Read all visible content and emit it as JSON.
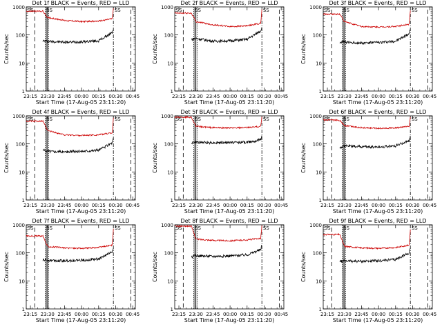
{
  "figure": {
    "xlabel": "Start Time (17-Aug-05 23:11:20)",
    "ylabel": "Counts/sec",
    "x_ticks": [
      "23:15",
      "23:30",
      "23:45",
      "00:00",
      "00:15",
      "00:30",
      "00:45"
    ],
    "y_ticks": [
      "1",
      "10",
      "100",
      "1000"
    ],
    "markers": [
      "SS",
      "SS",
      "SS"
    ],
    "colors": {
      "events": "#000000",
      "lld": "#cc0000"
    }
  },
  "chart_data": [
    {
      "type": "line",
      "title": "Det 1f BLACK = Events, RED = LLD",
      "y_scale": "log",
      "ylim": [
        1,
        1000
      ],
      "x": [
        "23:26",
        "23:30",
        "23:45",
        "00:00",
        "00:15",
        "00:27",
        "00:28"
      ],
      "series": [
        {
          "name": "Events",
          "values": [
            62,
            60,
            55,
            57,
            62,
            120,
            170
          ]
        },
        {
          "name": "LLD",
          "values": [
            700,
            420,
            330,
            300,
            310,
            380,
            900
          ]
        }
      ]
    },
    {
      "type": "line",
      "title": "Det 2f BLACK = Events, RED = LLD",
      "y_scale": "log",
      "ylim": [
        1,
        1000
      ],
      "x": [
        "23:26",
        "23:30",
        "23:45",
        "00:00",
        "00:15",
        "00:27",
        "00:28"
      ],
      "series": [
        {
          "name": "Events",
          "values": [
            70,
            75,
            60,
            62,
            70,
            140,
            200
          ]
        },
        {
          "name": "LLD",
          "values": [
            600,
            300,
            230,
            200,
            210,
            260,
            850
          ]
        }
      ]
    },
    {
      "type": "line",
      "title": "Det 3f BLACK = Events, RED = LLD",
      "y_scale": "log",
      "ylim": [
        1,
        1000
      ],
      "x": [
        "23:26",
        "23:30",
        "23:45",
        "00:00",
        "00:15",
        "00:27",
        "00:28"
      ],
      "series": [
        {
          "name": "Events",
          "values": [
            55,
            55,
            52,
            54,
            60,
            110,
            160
          ]
        },
        {
          "name": "LLD",
          "values": [
            550,
            300,
            200,
            190,
            200,
            240,
            800
          ]
        }
      ]
    },
    {
      "type": "line",
      "title": "Det 4f BLACK = Events, RED = LLD",
      "y_scale": "log",
      "ylim": [
        1,
        1000
      ],
      "x": [
        "23:26",
        "23:30",
        "23:45",
        "00:00",
        "00:15",
        "00:27",
        "00:28"
      ],
      "series": [
        {
          "name": "Events",
          "values": [
            60,
            55,
            52,
            55,
            60,
            110,
            160
          ]
        },
        {
          "name": "LLD",
          "values": [
            650,
            300,
            210,
            200,
            210,
            250,
            850
          ]
        }
      ]
    },
    {
      "type": "line",
      "title": "Det 5f BLACK = Events, RED = LLD",
      "y_scale": "log",
      "ylim": [
        1,
        1000
      ],
      "x": [
        "23:26",
        "23:30",
        "23:45",
        "00:00",
        "00:15",
        "00:27",
        "00:28"
      ],
      "series": [
        {
          "name": "Events",
          "values": [
            110,
            115,
            110,
            112,
            115,
            140,
            190
          ]
        },
        {
          "name": "LLD",
          "values": [
            900,
            420,
            380,
            370,
            380,
            420,
            950
          ]
        }
      ]
    },
    {
      "type": "line",
      "title": "Det 6f BLACK = Events, RED = LLD",
      "y_scale": "log",
      "ylim": [
        1,
        1000
      ],
      "x": [
        "23:26",
        "23:30",
        "23:45",
        "00:00",
        "00:15",
        "00:27",
        "00:28"
      ],
      "series": [
        {
          "name": "Events",
          "values": [
            75,
            85,
            80,
            78,
            85,
            130,
            180
          ]
        },
        {
          "name": "LLD",
          "values": [
            700,
            450,
            380,
            360,
            370,
            420,
            950
          ]
        }
      ]
    },
    {
      "type": "line",
      "title": "Det 7f BLACK = Events, RED = LLD",
      "y_scale": "log",
      "ylim": [
        1,
        1000
      ],
      "x": [
        "23:26",
        "23:30",
        "23:45",
        "00:00",
        "00:15",
        "00:27",
        "00:28"
      ],
      "series": [
        {
          "name": "Events",
          "values": [
            55,
            55,
            52,
            55,
            60,
            110,
            160
          ]
        },
        {
          "name": "LLD",
          "values": [
            400,
            170,
            150,
            145,
            155,
            190,
            700
          ]
        }
      ]
    },
    {
      "type": "line",
      "title": "Det 8f BLACK = Events, RED = LLD",
      "y_scale": "log",
      "ylim": [
        1,
        1000
      ],
      "x": [
        "23:26",
        "23:30",
        "23:45",
        "00:00",
        "00:15",
        "00:27",
        "00:28"
      ],
      "series": [
        {
          "name": "Events",
          "values": [
            70,
            80,
            75,
            78,
            85,
            130,
            200
          ]
        },
        {
          "name": "LLD",
          "values": [
            900,
            310,
            280,
            270,
            290,
            330,
            950
          ]
        }
      ]
    },
    {
      "type": "line",
      "title": "Det 9f BLACK = Events, RED = LLD",
      "y_scale": "log",
      "ylim": [
        1,
        1000
      ],
      "x": [
        "23:26",
        "23:30",
        "23:45",
        "00:00",
        "00:15",
        "00:27",
        "00:28"
      ],
      "series": [
        {
          "name": "Events",
          "values": [
            50,
            52,
            50,
            52,
            58,
            100,
            150
          ]
        },
        {
          "name": "LLD",
          "values": [
            450,
            170,
            150,
            145,
            155,
            190,
            700
          ]
        }
      ]
    }
  ]
}
